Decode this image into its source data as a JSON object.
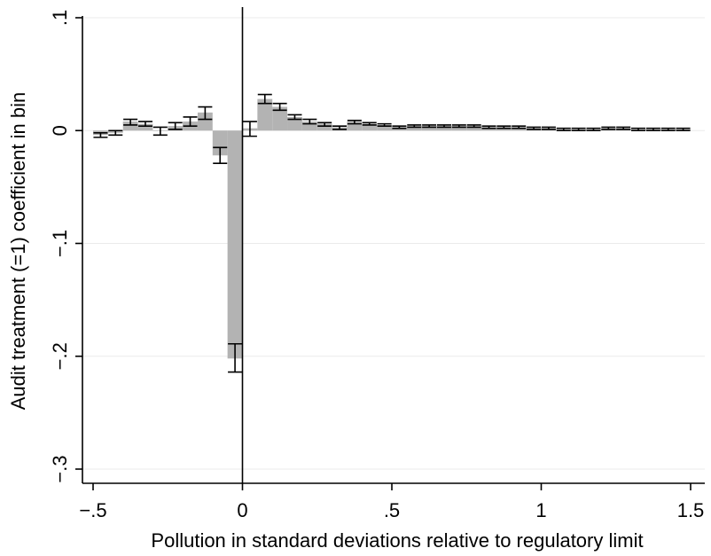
{
  "chart_data": {
    "type": "bar",
    "title": "",
    "xlabel": "Pollution in standard deviations relative to regulatory limit",
    "ylabel": "Audit treatment (=1) coefficient in bin",
    "xlim": [
      -0.5,
      1.5
    ],
    "ylim": [
      -0.3,
      0.1
    ],
    "bin_width": 0.05,
    "x_ticks": [
      -0.5,
      0,
      0.5,
      1,
      1.5
    ],
    "x_tick_labels": [
      "−.5",
      "0",
      ".5",
      "1",
      "1.5"
    ],
    "y_ticks": [
      -0.3,
      -0.2,
      -0.1,
      0,
      0.1
    ],
    "y_tick_labels": [
      "−.3",
      "−.2",
      "−.1",
      "0",
      ".1"
    ],
    "grid": true,
    "reference_line_x": 0,
    "colors": {
      "bar": "#b3b3b3",
      "error_bar": "#000000",
      "grid": "#ebebeb"
    },
    "bins": [
      {
        "x": -0.475,
        "y": -0.004,
        "ci": [
          -0.006,
          -0.002
        ]
      },
      {
        "x": -0.425,
        "y": -0.002,
        "ci": [
          -0.004,
          0.0
        ]
      },
      {
        "x": -0.375,
        "y": 0.008,
        "ci": [
          0.005,
          0.01
        ]
      },
      {
        "x": -0.325,
        "y": 0.006,
        "ci": [
          0.004,
          0.008
        ]
      },
      {
        "x": -0.275,
        "y": 0.0,
        "ci": [
          -0.004,
          0.003
        ]
      },
      {
        "x": -0.225,
        "y": 0.004,
        "ci": [
          0.001,
          0.007
        ]
      },
      {
        "x": -0.175,
        "y": 0.008,
        "ci": [
          0.004,
          0.012
        ]
      },
      {
        "x": -0.125,
        "y": 0.016,
        "ci": [
          0.01,
          0.021
        ]
      },
      {
        "x": -0.075,
        "y": -0.022,
        "ci": [
          -0.029,
          -0.015
        ]
      },
      {
        "x": -0.025,
        "y": -0.202,
        "ci": [
          -0.214,
          -0.189
        ]
      },
      {
        "x": 0.025,
        "y": 0.002,
        "ci": [
          -0.005,
          0.008
        ]
      },
      {
        "x": 0.075,
        "y": 0.028,
        "ci": [
          0.024,
          0.032
        ]
      },
      {
        "x": 0.125,
        "y": 0.021,
        "ci": [
          0.018,
          0.024
        ]
      },
      {
        "x": 0.175,
        "y": 0.012,
        "ci": [
          0.01,
          0.014
        ]
      },
      {
        "x": 0.225,
        "y": 0.008,
        "ci": [
          0.006,
          0.01
        ]
      },
      {
        "x": 0.275,
        "y": 0.006,
        "ci": [
          0.004,
          0.007
        ]
      },
      {
        "x": 0.325,
        "y": 0.003,
        "ci": [
          0.001,
          0.004
        ]
      },
      {
        "x": 0.375,
        "y": 0.008,
        "ci": [
          0.006,
          0.009
        ]
      },
      {
        "x": 0.425,
        "y": 0.006,
        "ci": [
          0.005,
          0.007
        ]
      },
      {
        "x": 0.475,
        "y": 0.005,
        "ci": [
          0.004,
          0.006
        ]
      },
      {
        "x": 0.525,
        "y": 0.003,
        "ci": [
          0.002,
          0.004
        ]
      },
      {
        "x": 0.575,
        "y": 0.004,
        "ci": [
          0.003,
          0.005
        ]
      },
      {
        "x": 0.625,
        "y": 0.004,
        "ci": [
          0.003,
          0.005
        ]
      },
      {
        "x": 0.675,
        "y": 0.004,
        "ci": [
          0.003,
          0.005
        ]
      },
      {
        "x": 0.725,
        "y": 0.004,
        "ci": [
          0.003,
          0.005
        ]
      },
      {
        "x": 0.775,
        "y": 0.004,
        "ci": [
          0.003,
          0.005
        ]
      },
      {
        "x": 0.825,
        "y": 0.003,
        "ci": [
          0.002,
          0.004
        ]
      },
      {
        "x": 0.875,
        "y": 0.003,
        "ci": [
          0.002,
          0.004
        ]
      },
      {
        "x": 0.925,
        "y": 0.003,
        "ci": [
          0.002,
          0.004
        ]
      },
      {
        "x": 0.975,
        "y": 0.002,
        "ci": [
          0.001,
          0.003
        ]
      },
      {
        "x": 1.025,
        "y": 0.002,
        "ci": [
          0.001,
          0.003
        ]
      },
      {
        "x": 1.075,
        "y": 0.001,
        "ci": [
          0.0,
          0.002
        ]
      },
      {
        "x": 1.125,
        "y": 0.001,
        "ci": [
          0.0,
          0.002
        ]
      },
      {
        "x": 1.175,
        "y": 0.001,
        "ci": [
          0.0,
          0.002
        ]
      },
      {
        "x": 1.225,
        "y": 0.002,
        "ci": [
          0.001,
          0.003
        ]
      },
      {
        "x": 1.275,
        "y": 0.002,
        "ci": [
          0.001,
          0.003
        ]
      },
      {
        "x": 1.325,
        "y": 0.001,
        "ci": [
          0.0,
          0.002
        ]
      },
      {
        "x": 1.375,
        "y": 0.001,
        "ci": [
          0.0,
          0.002
        ]
      },
      {
        "x": 1.425,
        "y": 0.001,
        "ci": [
          0.0,
          0.002
        ]
      },
      {
        "x": 1.475,
        "y": 0.001,
        "ci": [
          0.0,
          0.002
        ]
      }
    ]
  }
}
